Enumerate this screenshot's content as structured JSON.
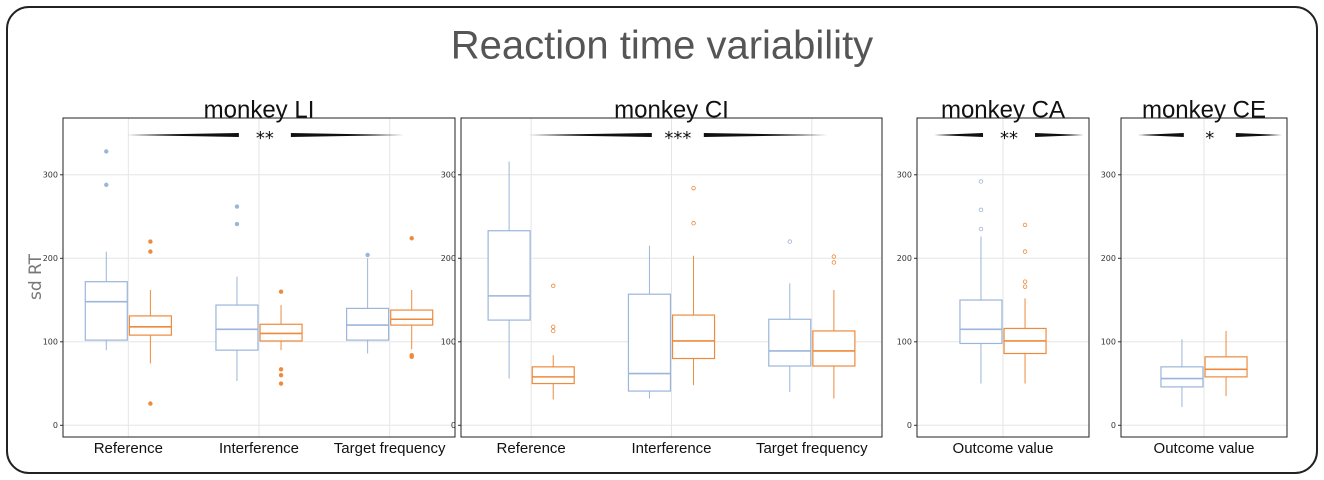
{
  "title": "Reaction time variability",
  "y_label": "sd RT",
  "chart_data": [
    {
      "type": "box",
      "title": "monkey LI",
      "annotation": "**",
      "outlier_style": "filled",
      "categories": [
        "Reference",
        "Interference",
        "Target frequency"
      ],
      "ylim": [
        -14,
        368
      ],
      "yticks": [
        0,
        100,
        200,
        300
      ],
      "grid": true,
      "series": [
        {
          "color": "#9bb5db",
          "boxes": [
            {
              "min": 90,
              "q1": 102,
              "median": 148,
              "q3": 172,
              "max": 208,
              "outliers": [
                328,
                288
              ]
            },
            {
              "min": 53,
              "q1": 90,
              "median": 115,
              "q3": 144,
              "max": 178,
              "outliers": [
                262,
                241
              ]
            },
            {
              "min": 86,
              "q1": 102,
              "median": 120,
              "q3": 140,
              "max": 200,
              "outliers": [
                204
              ]
            }
          ]
        },
        {
          "color": "#ee8a3c",
          "boxes": [
            {
              "min": 74,
              "q1": 108,
              "median": 118,
              "q3": 131,
              "max": 162,
              "outliers": [
                220,
                208,
                26
              ]
            },
            {
              "min": 90,
              "q1": 101,
              "median": 110,
              "q3": 121,
              "max": 144,
              "outliers": [
                160,
                67,
                60,
                50
              ]
            },
            {
              "min": 91,
              "q1": 120,
              "median": 127,
              "q3": 138,
              "max": 162,
              "outliers": [
                224,
                84,
                82
              ]
            }
          ]
        }
      ]
    },
    {
      "type": "box",
      "title": "monkey CI",
      "annotation": "***",
      "outlier_style": "open",
      "categories": [
        "Reference",
        "Interference",
        "Target frequency"
      ],
      "ylim": [
        -14,
        368
      ],
      "yticks": [
        0,
        100,
        200,
        300
      ],
      "grid": true,
      "series": [
        {
          "color": "#9bb5db",
          "boxes": [
            {
              "min": 56,
              "q1": 126,
              "median": 155,
              "q3": 233,
              "max": 316,
              "outliers": []
            },
            {
              "min": 32,
              "q1": 41,
              "median": 62,
              "q3": 157,
              "max": 215,
              "outliers": []
            },
            {
              "min": 40,
              "q1": 71,
              "median": 89,
              "q3": 127,
              "max": 170,
              "outliers": [
                220
              ]
            }
          ]
        },
        {
          "color": "#ee8a3c",
          "boxes": [
            {
              "min": 31,
              "q1": 50,
              "median": 58,
              "q3": 70,
              "max": 84,
              "outliers": [
                167,
                118,
                113
              ]
            },
            {
              "min": 48,
              "q1": 80,
              "median": 101,
              "q3": 132,
              "max": 203,
              "outliers": [
                284,
                242
              ]
            },
            {
              "min": 32,
              "q1": 71,
              "median": 89,
              "q3": 113,
              "max": 162,
              "outliers": [
                202,
                195
              ]
            }
          ]
        }
      ]
    },
    {
      "type": "box",
      "title": "monkey CA",
      "annotation": "**",
      "outlier_style": "open",
      "categories": [
        "Outcome value"
      ],
      "ylim": [
        -14,
        368
      ],
      "yticks": [
        0,
        100,
        200,
        300
      ],
      "grid": true,
      "series": [
        {
          "color": "#9bb5db",
          "boxes": [
            {
              "min": 50,
              "q1": 98,
              "median": 115,
              "q3": 150,
              "max": 226,
              "outliers": [
                292,
                258,
                235
              ]
            }
          ]
        },
        {
          "color": "#ee8a3c",
          "boxes": [
            {
              "min": 50,
              "q1": 86,
              "median": 101,
              "q3": 116,
              "max": 152,
              "outliers": [
                240,
                208,
                172,
                166
              ]
            }
          ]
        }
      ]
    },
    {
      "type": "box",
      "title": "monkey CE",
      "annotation": "*",
      "outlier_style": "open",
      "categories": [
        "Outcome value"
      ],
      "ylim": [
        -14,
        368
      ],
      "yticks": [
        0,
        100,
        200,
        300
      ],
      "grid": true,
      "series": [
        {
          "color": "#9bb5db",
          "boxes": [
            {
              "min": 22,
              "q1": 46,
              "median": 56,
              "q3": 70,
              "max": 103,
              "outliers": []
            }
          ]
        },
        {
          "color": "#ee8a3c",
          "boxes": [
            {
              "min": 35,
              "q1": 58,
              "median": 67,
              "q3": 82,
              "max": 113,
              "outliers": []
            }
          ]
        }
      ]
    }
  ]
}
